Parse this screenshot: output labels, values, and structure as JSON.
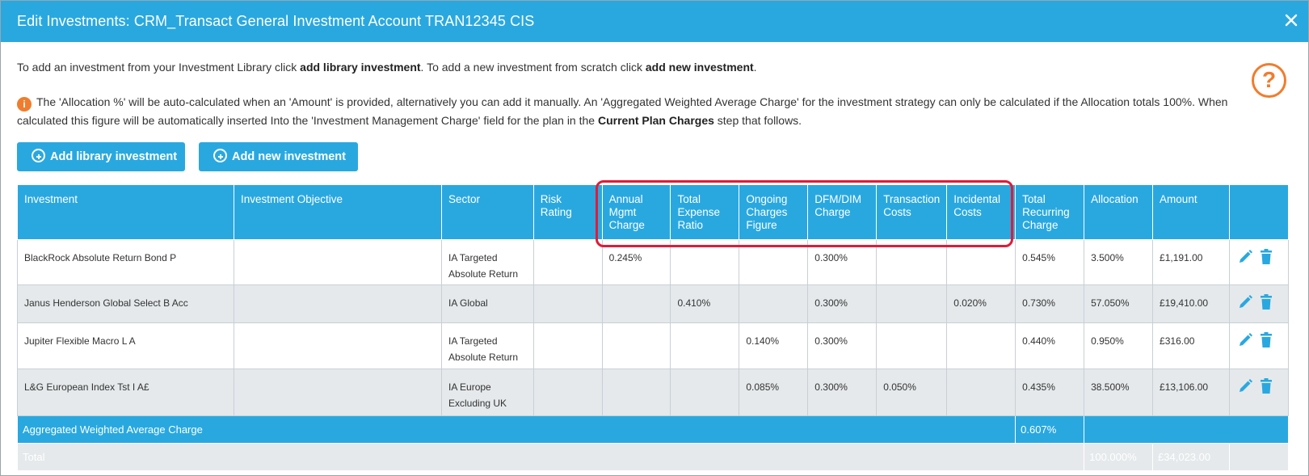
{
  "dialog": {
    "title": "Edit Investments: CRM_Transact General Investment Account TRAN12345 CIS",
    "close_icon": "close-icon"
  },
  "intro": {
    "part1": "To add an investment from your Investment Library click ",
    "bold1": "add library investment",
    "part2": ". To add a new investment from scratch click ",
    "bold2": "add new investment",
    "part3": "."
  },
  "info": {
    "icon": "info-icon",
    "icon_glyph": "i",
    "text": "The 'Allocation %' will be auto-calculated when an 'Amount' is provided, alternatively you can add it manually. An 'Aggregated Weighted Average Charge' for the investment strategy can only be calculated if the Allocation totals 100%. When calculated this figure will be automatically inserted Into the 'Investment Management Charge' field for the plan in the ",
    "bold": "Current Plan Charges",
    "tail": " step that follows."
  },
  "help": {
    "icon": "help-icon",
    "glyph": "?"
  },
  "buttons": {
    "add_library": "Add library investment",
    "add_new": "Add new investment"
  },
  "table": {
    "headers": {
      "investment": "Investment",
      "objective": "Investment Objective",
      "sector": "Sector",
      "risk": "Risk Rating",
      "amc": "Annual Mgmt Charge",
      "ter": "Total Expense Ratio",
      "ocf": "Ongoing Charges Figure",
      "dfm": "DFM/DIM Charge",
      "transaction": "Transaction Costs",
      "incidental": "Incidental Costs",
      "trc": "Total Recurring Charge",
      "allocation": "Allocation",
      "amount": "Amount"
    },
    "rows": [
      {
        "investment": "BlackRock Absolute Return Bond P",
        "objective": "",
        "sector": "IA Targeted Absolute Return",
        "risk": "",
        "amc": "0.245%",
        "ter": "",
        "ocf": "",
        "dfm": "0.300%",
        "transaction": "",
        "incidental": "",
        "trc": "0.545%",
        "allocation": "3.500%",
        "amount": "£1,191.00"
      },
      {
        "investment": "Janus Henderson Global Select B Acc",
        "objective": "",
        "sector": "IA Global",
        "risk": "",
        "amc": "",
        "ter": "0.410%",
        "ocf": "",
        "dfm": "0.300%",
        "transaction": "",
        "incidental": "0.020%",
        "trc": "0.730%",
        "allocation": "57.050%",
        "amount": "£19,410.00"
      },
      {
        "investment": "Jupiter Flexible Macro L A",
        "objective": "",
        "sector": "IA Targeted Absolute Return",
        "risk": "",
        "amc": "",
        "ter": "",
        "ocf": "0.140%",
        "dfm": "0.300%",
        "transaction": "",
        "incidental": "",
        "trc": "0.440%",
        "allocation": "0.950%",
        "amount": "£316.00"
      },
      {
        "investment": "L&G European Index Tst I A£",
        "objective": "",
        "sector": "IA Europe Excluding UK",
        "risk": "",
        "amc": "",
        "ter": "",
        "ocf": "0.085%",
        "dfm": "0.300%",
        "transaction": "0.050%",
        "incidental": "",
        "trc": "0.435%",
        "allocation": "38.500%",
        "amount": "£13,106.00"
      }
    ],
    "aggregated": {
      "label": "Aggregated Weighted Average Charge",
      "value": "0.607%"
    },
    "total": {
      "label": "Total",
      "allocation": "100.000%",
      "amount": "£34,023.00"
    }
  },
  "colors": {
    "primary": "#29a8e0",
    "highlight": "#e01b38",
    "accent": "#f07d2e",
    "row_alt": "#e5e9eb"
  },
  "row_icons": {
    "edit": "pencil-icon",
    "delete": "trash-icon"
  }
}
